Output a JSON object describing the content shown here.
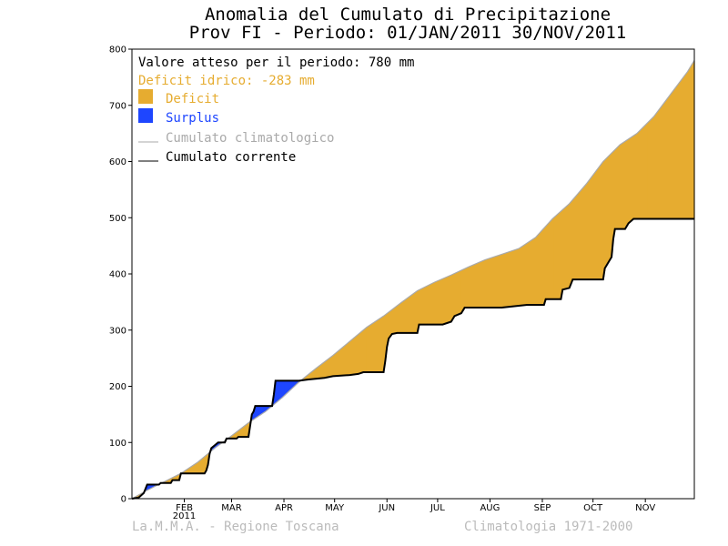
{
  "title_line1": "Anomalia del Cumulato di Precipitazione",
  "title_line2": "Prov FI - Periodo: 01/JAN/2011 30/NOV/2011",
  "legend": {
    "expected": "Valore atteso per il periodo: 780 mm",
    "deficit_text": "Deficit idrico: -283 mm",
    "deficit_label": "Deficit",
    "surplus_label": "Surplus",
    "climatological_label": "Cumulato climatologico",
    "current_label": "Cumulato corrente"
  },
  "footer": {
    "left": "La.M.M.A. - Regione Toscana",
    "right": "Climatologia 1971-2000"
  },
  "colors": {
    "deficit": "#e6ac30",
    "surplus": "#1e46ff",
    "climatological": "#aaaaaa",
    "current": "#000000"
  },
  "chart_data": {
    "type": "area",
    "x_unit": "day of year 2011",
    "xlim": [
      1,
      334
    ],
    "ylim": [
      0,
      800
    ],
    "y_ticks": [
      0,
      100,
      200,
      300,
      400,
      500,
      600,
      700,
      800
    ],
    "x_ticks": [
      {
        "day": 32,
        "label": "FEB",
        "sublabel": "2011"
      },
      {
        "day": 60,
        "label": "MAR"
      },
      {
        "day": 91,
        "label": "APR"
      },
      {
        "day": 121,
        "label": "MAY"
      },
      {
        "day": 152,
        "label": "JUN"
      },
      {
        "day": 182,
        "label": "JUL"
      },
      {
        "day": 213,
        "label": "AUG"
      },
      {
        "day": 244,
        "label": "SEP"
      },
      {
        "day": 274,
        "label": "OCT"
      },
      {
        "day": 305,
        "label": "NOV"
      }
    ],
    "series": [
      {
        "name": "Cumulato climatologico",
        "points": [
          [
            1,
            0
          ],
          [
            10,
            15
          ],
          [
            20,
            30
          ],
          [
            30,
            45
          ],
          [
            40,
            65
          ],
          [
            50,
            90
          ],
          [
            60,
            112
          ],
          [
            70,
            135
          ],
          [
            80,
            155
          ],
          [
            90,
            180
          ],
          [
            100,
            208
          ],
          [
            110,
            232
          ],
          [
            120,
            255
          ],
          [
            130,
            280
          ],
          [
            140,
            305
          ],
          [
            150,
            325
          ],
          [
            160,
            348
          ],
          [
            170,
            370
          ],
          [
            180,
            385
          ],
          [
            190,
            398
          ],
          [
            200,
            412
          ],
          [
            210,
            425
          ],
          [
            220,
            435
          ],
          [
            230,
            445
          ],
          [
            240,
            465
          ],
          [
            250,
            498
          ],
          [
            260,
            525
          ],
          [
            270,
            560
          ],
          [
            280,
            600
          ],
          [
            290,
            630
          ],
          [
            300,
            650
          ],
          [
            310,
            680
          ],
          [
            320,
            720
          ],
          [
            330,
            760
          ],
          [
            334,
            780
          ]
        ]
      },
      {
        "name": "Cumulato corrente",
        "points": [
          [
            1,
            0
          ],
          [
            5,
            2
          ],
          [
            8,
            10
          ],
          [
            10,
            25
          ],
          [
            17,
            25
          ],
          [
            18,
            28
          ],
          [
            24,
            28
          ],
          [
            25,
            33
          ],
          [
            29,
            33
          ],
          [
            30,
            45
          ],
          [
            44,
            45
          ],
          [
            45,
            50
          ],
          [
            46,
            60
          ],
          [
            47,
            80
          ],
          [
            48,
            90
          ],
          [
            50,
            95
          ],
          [
            52,
            100
          ],
          [
            56,
            100
          ],
          [
            57,
            107
          ],
          [
            63,
            107
          ],
          [
            64,
            110
          ],
          [
            70,
            110
          ],
          [
            71,
            130
          ],
          [
            72,
            150
          ],
          [
            73,
            155
          ],
          [
            74,
            165
          ],
          [
            84,
            165
          ],
          [
            85,
            185
          ],
          [
            86,
            210
          ],
          [
            100,
            210
          ],
          [
            105,
            212
          ],
          [
            115,
            215
          ],
          [
            120,
            218
          ],
          [
            130,
            220
          ],
          [
            135,
            222
          ],
          [
            138,
            225
          ],
          [
            150,
            225
          ],
          [
            151,
            245
          ],
          [
            152,
            270
          ],
          [
            153,
            285
          ],
          [
            155,
            293
          ],
          [
            158,
            295
          ],
          [
            170,
            295
          ],
          [
            171,
            310
          ],
          [
            185,
            310
          ],
          [
            190,
            315
          ],
          [
            192,
            325
          ],
          [
            196,
            330
          ],
          [
            198,
            340
          ],
          [
            220,
            340
          ],
          [
            235,
            345
          ],
          [
            245,
            345
          ],
          [
            246,
            355
          ],
          [
            255,
            355
          ],
          [
            256,
            372
          ],
          [
            260,
            375
          ],
          [
            262,
            390
          ],
          [
            280,
            390
          ],
          [
            281,
            410
          ],
          [
            283,
            420
          ],
          [
            285,
            430
          ],
          [
            286,
            462
          ],
          [
            287,
            480
          ],
          [
            293,
            480
          ],
          [
            295,
            490
          ],
          [
            298,
            498
          ],
          [
            334,
            498
          ]
        ]
      }
    ]
  }
}
